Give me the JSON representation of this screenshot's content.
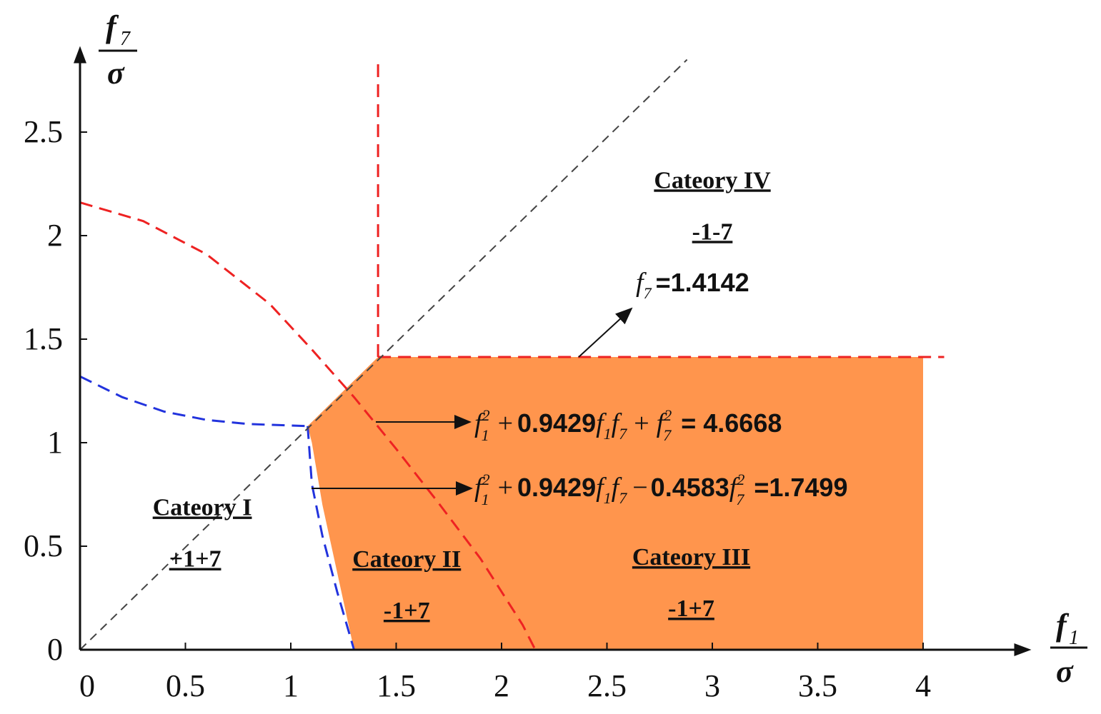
{
  "chart_data": {
    "type": "line",
    "title": "",
    "xlabel": {
      "symbol": "f",
      "subscript": "1",
      "denominator": "σ"
    },
    "ylabel": {
      "symbol": "f",
      "subscript": "7",
      "denominator": "σ"
    },
    "xlim": [
      0,
      4.5
    ],
    "ylim": [
      0,
      2.85
    ],
    "xticks": [
      "0",
      "0.5",
      "1",
      "1.5",
      "2",
      "2.5",
      "3",
      "3.5",
      "4"
    ],
    "yticks": [
      "0",
      "0.5",
      "1",
      "1.5",
      "2",
      "2.5"
    ],
    "grid": false,
    "colors": {
      "region_fill": "#ff954d",
      "red_boundary": "#ee2222",
      "blue_boundary": "#2233dd",
      "diagonal": "#444444",
      "axis": "#111111"
    },
    "shaded_region": {
      "name": "",
      "points": [
        [
          1.08,
          1.08
        ],
        [
          1.414,
          1.414
        ],
        [
          4.0,
          1.414
        ],
        [
          4.0,
          0
        ],
        [
          1.3,
          0
        ],
        [
          1.15,
          0.7
        ],
        [
          1.1,
          1.0
        ]
      ]
    },
    "series": [
      {
        "color": "#ee2222",
        "style": "dashed",
        "x": [
          0,
          0.3,
          0.6,
          0.9,
          1.1,
          1.3,
          1.5,
          1.7,
          1.9,
          2.1,
          2.16
        ],
        "y": [
          2.16,
          2.07,
          1.91,
          1.67,
          1.45,
          1.22,
          0.97,
          0.71,
          0.44,
          0.12,
          0
        ]
      },
      {
        "color": "#ee2222",
        "style": "dashed",
        "x": [
          1.414,
          1.414
        ],
        "y": [
          1.414,
          2.85
        ]
      },
      {
        "color": "#ee2222",
        "style": "dashed",
        "x": [
          1.414,
          4.1
        ],
        "y": [
          1.414,
          1.414
        ]
      },
      {
        "color": "#2233dd",
        "style": "dashed",
        "x": [
          0,
          0.2,
          0.4,
          0.6,
          0.8,
          1.08
        ],
        "y": [
          1.32,
          1.22,
          1.15,
          1.11,
          1.09,
          1.08
        ]
      },
      {
        "color": "#2233dd",
        "style": "dashed",
        "x": [
          1.08,
          1.1,
          1.15,
          1.22,
          1.3
        ],
        "y": [
          1.08,
          0.8,
          0.55,
          0.28,
          0
        ]
      },
      {
        "color": "#444444",
        "style": "dashed",
        "x": [
          0,
          2.88
        ],
        "y": [
          0,
          2.85
        ]
      }
    ],
    "annotations": {
      "categories": [
        {
          "name": "Cateory I",
          "sign": "+1+7",
          "x": 0.58,
          "y": 0.65
        },
        {
          "name": "Cateory II",
          "sign": "-1+7",
          "x": 1.55,
          "y": 0.4
        },
        {
          "name": "Cateory III",
          "sign": "-1+7",
          "x": 2.9,
          "y": 0.41
        },
        {
          "name": "Cateory IV",
          "sign": "-1-7",
          "x": 3.0,
          "y": 2.23
        }
      ],
      "equations": [
        {
          "lhs_a": "f",
          "sub_a": "1",
          "sup_a": "2",
          "op1": "+",
          "coef1": "0.9429",
          "term": "f",
          "term_sub1": "1",
          "term_sub2": "7",
          "op2": "+",
          "coef2": "",
          "sq": "f",
          "sq_sub": "7",
          "sq_sup": "2",
          "rhs": "= 4.6668"
        },
        {
          "lhs_a": "f",
          "sub_a": "1",
          "sup_a": "2",
          "op1": "+",
          "coef1": "0.9429",
          "term": "f",
          "term_sub1": "1",
          "term_sub2": "7",
          "op2": "−",
          "coef2": "0.4583",
          "sq": "f",
          "sq_sub": "7",
          "sq_sup": "2",
          "rhs": "=1.7499"
        }
      ],
      "f7_value": {
        "symbol": "f",
        "subscript": "7",
        "text": "=1.4142"
      }
    }
  }
}
